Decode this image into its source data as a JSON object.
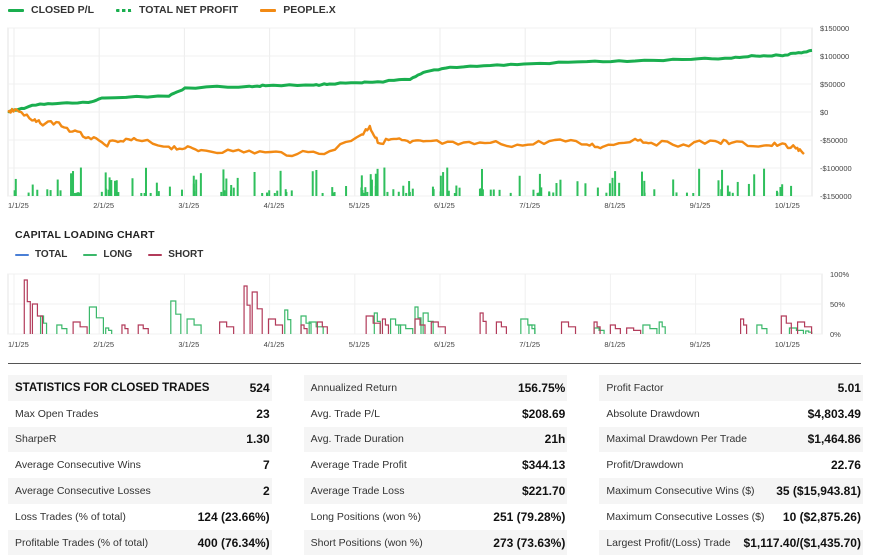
{
  "colors": {
    "closed_pl": "#1aae4f",
    "net_profit": "#1aae4f",
    "people": "#f28a14",
    "bars": "#2fbf5c",
    "total": "#4a7fd6",
    "long": "#3bb86a",
    "short": "#b23b5a"
  },
  "legend": {
    "closed_pl": "CLOSED P/L",
    "total_net_profit": "TOTAL NET PROFIT",
    "people": "PEOPLE.X"
  },
  "capital": {
    "title": "CAPITAL LOADING CHART",
    "legend": {
      "total": "TOTAL",
      "long": "LONG",
      "short": "SHORT"
    }
  },
  "chart_data": [
    {
      "type": "line",
      "x_ticks": [
        "1/1/25",
        "2/1/25",
        "3/1/25",
        "4/1/25",
        "5/1/25",
        "6/1/25",
        "7/1/25",
        "8/1/25",
        "9/1/25",
        "10/1/25"
      ],
      "y_ticks": [
        "$150000",
        "$100000",
        "$50000",
        "$0",
        "-$50000",
        "-$100000",
        "-$150000"
      ],
      "ylim": [
        -150000,
        150000
      ],
      "grid": true,
      "legend_position": "top-left",
      "series": [
        {
          "name": "CLOSED P/L",
          "x": [
            0,
            0.01,
            0.03,
            0.06,
            0.1,
            0.12,
            0.2,
            0.22,
            0.3,
            0.32,
            0.38,
            0.4,
            0.44,
            0.46,
            0.5,
            0.52,
            0.55,
            0.6,
            0.65,
            0.72,
            0.78,
            0.85,
            0.9,
            0.93,
            0.96,
            0.98,
            1.0
          ],
          "values": [
            1000,
            3000,
            12000,
            15000,
            17000,
            25000,
            28000,
            43000,
            46000,
            47000,
            48000,
            50000,
            52000,
            54000,
            58000,
            72000,
            80000,
            83000,
            86000,
            90000,
            91000,
            94000,
            96000,
            100000,
            101000,
            105000,
            110000
          ]
        },
        {
          "name": "PEOPLE.X",
          "x": [
            0,
            0.01,
            0.03,
            0.04,
            0.06,
            0.08,
            0.1,
            0.12,
            0.14,
            0.16,
            0.2,
            0.22,
            0.24,
            0.28,
            0.32,
            0.36,
            0.4,
            0.44,
            0.45,
            0.46,
            0.48,
            0.5,
            0.52,
            0.56,
            0.6,
            0.64,
            0.68,
            0.72,
            0.74,
            0.78,
            0.8,
            0.84,
            0.88,
            0.9,
            0.94,
            0.96,
            0.98,
            0.99
          ],
          "values": [
            0,
            5000,
            -15000,
            -20000,
            -18000,
            -35000,
            -45000,
            -58000,
            -52000,
            -50000,
            -62000,
            -65000,
            -68000,
            -70000,
            -72000,
            -75000,
            -70000,
            -40000,
            -25000,
            -55000,
            -48000,
            -55000,
            -52000,
            -58000,
            -55000,
            -60000,
            -50000,
            -58000,
            -62000,
            -48000,
            -55000,
            -58000,
            -52000,
            -55000,
            -60000,
            -58000,
            -65000,
            -75000
          ]
        }
      ]
    },
    {
      "type": "area",
      "title": "CAPITAL LOADING CHART",
      "x_ticks": [
        "1/1/25",
        "2/1/25",
        "3/1/25",
        "4/1/25",
        "5/1/25",
        "6/1/25",
        "7/1/25",
        "8/1/25",
        "9/1/25",
        "10/1/25"
      ],
      "y_ticks": [
        "100%",
        "50%",
        "0%"
      ],
      "ylim": [
        0,
        100
      ],
      "series": [
        {
          "name": "LONG",
          "x": [
            0.04,
            0.06,
            0.1,
            0.12,
            0.2,
            0.22,
            0.34,
            0.36,
            0.37,
            0.45,
            0.47,
            0.48,
            0.5,
            0.51,
            0.63,
            0.64,
            0.72,
            0.78,
            0.8,
            0.92,
            0.96,
            0.98
          ],
          "values": [
            30,
            15,
            45,
            10,
            55,
            25,
            40,
            30,
            20,
            35,
            25,
            15,
            45,
            35,
            25,
            15,
            10,
            15,
            20,
            15,
            10,
            5
          ]
        },
        {
          "name": "SHORT",
          "x": [
            0.02,
            0.03,
            0.08,
            0.14,
            0.16,
            0.26,
            0.29,
            0.3,
            0.32,
            0.36,
            0.38,
            0.44,
            0.46,
            0.5,
            0.52,
            0.58,
            0.6,
            0.68,
            0.72,
            0.74,
            0.76,
            0.9,
            0.95,
            0.97
          ],
          "values": [
            90,
            50,
            20,
            15,
            15,
            20,
            80,
            70,
            25,
            15,
            20,
            30,
            25,
            25,
            20,
            35,
            20,
            20,
            20,
            15,
            10,
            25,
            30,
            20
          ]
        }
      ]
    }
  ],
  "stats": {
    "col1": [
      {
        "label": "STATISTICS FOR CLOSED TRADES",
        "value": "524",
        "head": true
      },
      {
        "label": "Max Open Trades",
        "value": "23"
      },
      {
        "label": "SharpeR",
        "value": "1.30"
      },
      {
        "label": "Average Consecutive Wins",
        "value": "7"
      },
      {
        "label": "Average Consecutive Losses",
        "value": "2"
      },
      {
        "label": "Loss Trades (% of total)",
        "value": "124 (23.66%)"
      },
      {
        "label": "Profitable Trades (% of total)",
        "value": "400 (76.34%)"
      }
    ],
    "col2": [
      {
        "label": "Annualized Return",
        "value": "156.75%"
      },
      {
        "label": "Avg. Trade P/L",
        "value": "$208.69"
      },
      {
        "label": "Avg. Trade Duration",
        "value": "21h"
      },
      {
        "label": "Average Trade Profit",
        "value": "$344.13"
      },
      {
        "label": "Average Trade Loss",
        "value": "$221.70"
      },
      {
        "label": "Long Positions (won %)",
        "value": "251 (79.28%)"
      },
      {
        "label": "Short Positions (won %)",
        "value": "273 (73.63%)"
      }
    ],
    "col3": [
      {
        "label": "Profit Factor",
        "value": "5.01"
      },
      {
        "label": "Absolute Drawdown",
        "value": "$4,803.49"
      },
      {
        "label": "Maximal Drawdown Per Trade",
        "value": "$1,464.86"
      },
      {
        "label": "Profit/Drawdown",
        "value": "22.76"
      },
      {
        "label": "Maximum Consecutive Wins ($)",
        "value": "35 ($15,943.81)"
      },
      {
        "label": "Maximum Consecutive Losses ($)",
        "value": "10 ($2,875.26)"
      },
      {
        "label": "Largest Profit/(Loss) Trade",
        "value": "$1,117.40/($1,435.70)"
      }
    ]
  }
}
